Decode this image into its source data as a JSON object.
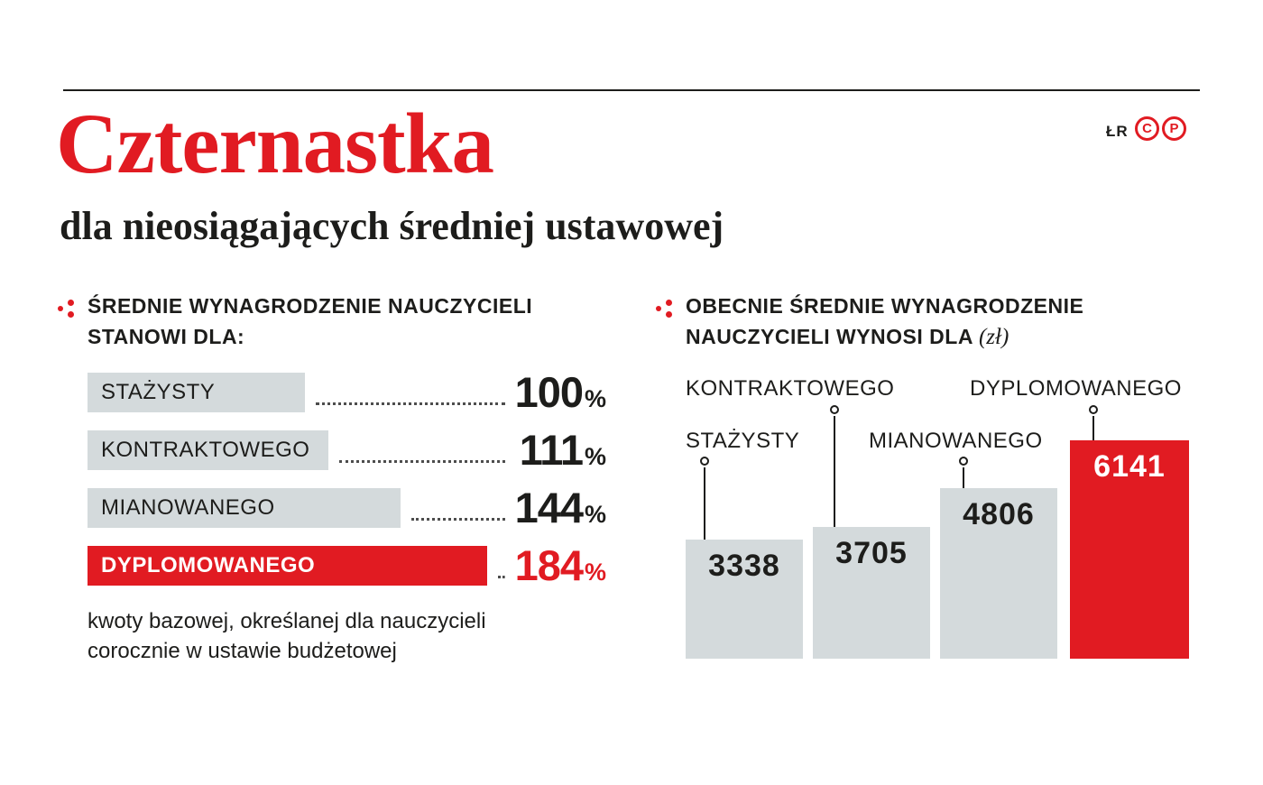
{
  "header": {
    "title": "Czternastka",
    "subtitle": "dla nieosiągających średniej ustawowej",
    "author": "ŁR",
    "logo_c": "C",
    "logo_p": "P"
  },
  "left_section": {
    "heading_line1": "ŚREDNIE WYNAGRODZENIE NAUCZYCIELI",
    "heading_line2": "STANOWI DLA:",
    "footnote_line1": "kwoty bazowej, określanej dla nauczycieli",
    "footnote_line2": "corocznie w ustawie budżetowej"
  },
  "right_section": {
    "heading_line1": "OBECNIE ŚREDNIE WYNAGRODZENIE",
    "heading_line2": "NAUCZYCIELI WYNOSI DLA",
    "heading_unit": "(zł)"
  },
  "colors": {
    "accent_red": "#e11b22",
    "bar_gray": "#d4dadc",
    "text_dark": "#1d1d1b"
  },
  "chart_data": [
    {
      "type": "bar",
      "orientation": "horizontal",
      "title": "Średnie wynagrodzenie nauczycieli stanowi dla:",
      "categories": [
        "STAŻYSTY",
        "KONTRAKTOWEGO",
        "MIANOWANEGO",
        "DYPLOMOWANEGO"
      ],
      "values": [
        100,
        111,
        144,
        184
      ],
      "unit": "%",
      "xlim": [
        0,
        184
      ],
      "highlight_index": 3,
      "highlight_color": "#e11b22",
      "footnote": "kwoty bazowej, określanej dla nauczycieli corocznie w ustawie budżetowej"
    },
    {
      "type": "bar",
      "orientation": "vertical",
      "title": "Obecnie średnie wynagrodzenie nauczycieli wynosi dla (zł)",
      "categories": [
        "STAŻYSTY",
        "KONTRAKTOWEGO",
        "MIANOWANEGO",
        "DYPLOMOWANEGO"
      ],
      "values": [
        3338,
        3705,
        4806,
        6141
      ],
      "unit": "zł",
      "ylim": [
        0,
        6141
      ],
      "highlight_index": 3,
      "highlight_color": "#e11b22"
    }
  ]
}
